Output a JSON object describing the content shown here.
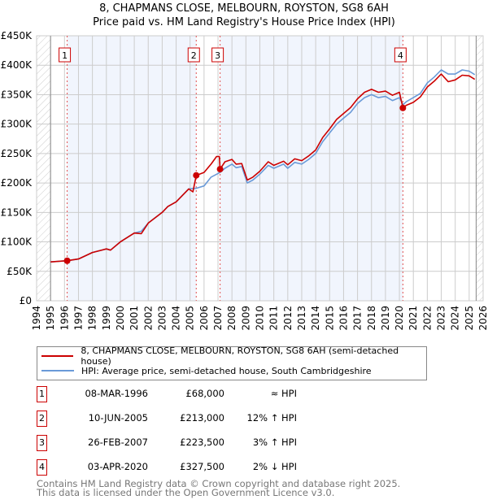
{
  "title_line1": "8, CHAPMANS CLOSE, MELBOURN, ROYSTON, SG8 6AH",
  "title_line2": "Price paid vs. HM Land Registry's House Price Index (HPI)",
  "chart_data": {
    "type": "line",
    "title": "8, CHAPMANS CLOSE, MELBOURN, ROYSTON, SG8 6AH — Price paid vs. HM Land Registry's House Price Index (HPI)",
    "xlim": [
      1994,
      2026
    ],
    "ylim": [
      0,
      450000
    ],
    "x_ticks": [
      "1994",
      "1995",
      "1996",
      "1997",
      "1998",
      "1999",
      "2000",
      "2001",
      "2002",
      "2003",
      "2004",
      "2005",
      "2006",
      "2007",
      "2008",
      "2009",
      "2010",
      "2011",
      "2012",
      "2013",
      "2014",
      "2015",
      "2016",
      "2017",
      "2018",
      "2019",
      "2020",
      "2021",
      "2022",
      "2023",
      "2024",
      "2025",
      "2026"
    ],
    "y_ticks": [
      {
        "v": 0,
        "label": "£0"
      },
      {
        "v": 50000,
        "label": "£50K"
      },
      {
        "v": 100000,
        "label": "£100K"
      },
      {
        "v": 150000,
        "label": "£150K"
      },
      {
        "v": 200000,
        "label": "£200K"
      },
      {
        "v": 250000,
        "label": "£250K"
      },
      {
        "v": 300000,
        "label": "£300K"
      },
      {
        "v": 350000,
        "label": "£350K"
      },
      {
        "v": 400000,
        "label": "£400K"
      },
      {
        "v": 450000,
        "label": "£450K"
      }
    ],
    "grid": true,
    "data_range": [
      1995,
      2025.5
    ],
    "series": [
      {
        "name": "8, CHAPMANS CLOSE, MELBOURN, ROYSTON, SG8 6AH (semi-detached house)",
        "color": "#cc0000",
        "x": [
          1995,
          1996.2,
          1997,
          1998,
          1999,
          1999.3,
          2000,
          2001,
          2001.5,
          2002,
          2003,
          2003.4,
          2004,
          2004.9,
          2005.2,
          2005.44,
          2006,
          2006.5,
          2006.9,
          2007.1,
          2007.15,
          2007.5,
          2008,
          2008.3,
          2008.7,
          2009.1,
          2009.5,
          2010,
          2010.6,
          2011,
          2011.7,
          2012,
          2012.5,
          2013,
          2013.5,
          2014,
          2014.5,
          2015,
          2015.5,
          2016,
          2016.5,
          2017,
          2017.5,
          2018,
          2018.5,
          2019,
          2019.5,
          2020,
          2020.25,
          2020.5,
          2021,
          2021.5,
          2022,
          2022.5,
          2023,
          2023.5,
          2024,
          2024.5,
          2025,
          2025.4
        ],
        "y": [
          66000,
          68000,
          71000,
          82000,
          88000,
          86000,
          100000,
          115000,
          114000,
          132000,
          150000,
          160000,
          168000,
          190000,
          185000,
          213000,
          218000,
          232000,
          245000,
          245000,
          223500,
          236000,
          240000,
          232000,
          233000,
          205000,
          210000,
          220000,
          236000,
          230000,
          237000,
          231000,
          241000,
          238000,
          246000,
          256000,
          277000,
          292000,
          308000,
          318000,
          328000,
          343000,
          354000,
          359000,
          354000,
          356000,
          349000,
          354000,
          327500,
          332000,
          337000,
          346000,
          363000,
          373000,
          385000,
          372000,
          375000,
          383000,
          382000,
          376000
        ]
      },
      {
        "name": "HPI: Average price, semi-detached house, South Cambridgeshire",
        "color": "#6a9ad8",
        "x": [
          1995,
          1996.2,
          1997,
          1998,
          1999,
          1999.3,
          2000,
          2001,
          2001.5,
          2002,
          2003,
          2003.4,
          2004,
          2004.9,
          2005.44,
          2006,
          2006.5,
          2007.15,
          2007.5,
          2008,
          2008.3,
          2008.7,
          2009.1,
          2009.5,
          2010,
          2010.6,
          2011,
          2011.7,
          2012,
          2012.5,
          2013,
          2013.5,
          2014,
          2014.5,
          2015,
          2015.5,
          2016,
          2016.5,
          2017,
          2017.5,
          2018,
          2018.5,
          2019,
          2019.5,
          2020,
          2020.25,
          2020.5,
          2021,
          2021.5,
          2022,
          2022.5,
          2023,
          2023.5,
          2024,
          2024.5,
          2025,
          2025.4
        ],
        "y": [
          66000,
          68000,
          71000,
          82000,
          88000,
          86000,
          100000,
          115000,
          118000,
          132000,
          150000,
          160000,
          168000,
          190000,
          191000,
          195000,
          210000,
          218000,
          225000,
          232000,
          226000,
          228000,
          200000,
          205000,
          215000,
          230000,
          225000,
          232000,
          225000,
          235000,
          232000,
          240000,
          250000,
          270000,
          285000,
          300000,
          310000,
          320000,
          335000,
          345000,
          350000,
          345000,
          347000,
          340000,
          345000,
          333000,
          338000,
          345000,
          352000,
          370000,
          380000,
          392000,
          385000,
          385000,
          392000,
          390000,
          384000
        ]
      }
    ],
    "sales": [
      {
        "n": "1",
        "x": 1996.19,
        "price": 68000
      },
      {
        "n": "2",
        "x": 2005.44,
        "price": 213000
      },
      {
        "n": "3",
        "x": 2007.15,
        "price": 223500
      },
      {
        "n": "4",
        "x": 2020.25,
        "price": 327500
      }
    ]
  },
  "legend": {
    "property": "8, CHAPMANS CLOSE, MELBOURN, ROYSTON, SG8 6AH (semi-detached house)",
    "hpi": "HPI: Average price, semi-detached house, South Cambridgeshire"
  },
  "transactions": [
    {
      "n": "1",
      "date": "08-MAR-1996",
      "price": "£68,000",
      "hpi": "≈ HPI"
    },
    {
      "n": "2",
      "date": "10-JUN-2005",
      "price": "£213,000",
      "hpi": "12% ↑ HPI"
    },
    {
      "n": "3",
      "date": "26-FEB-2007",
      "price": "£223,500",
      "hpi": "3% ↑ HPI"
    },
    {
      "n": "4",
      "date": "03-APR-2020",
      "price": "£327,500",
      "hpi": "2% ↓ HPI"
    }
  ],
  "footer": {
    "line1": "Contains HM Land Registry data © Crown copyright and database right 2025.",
    "line2": "This data is licensed under the Open Government Licence v3.0."
  }
}
